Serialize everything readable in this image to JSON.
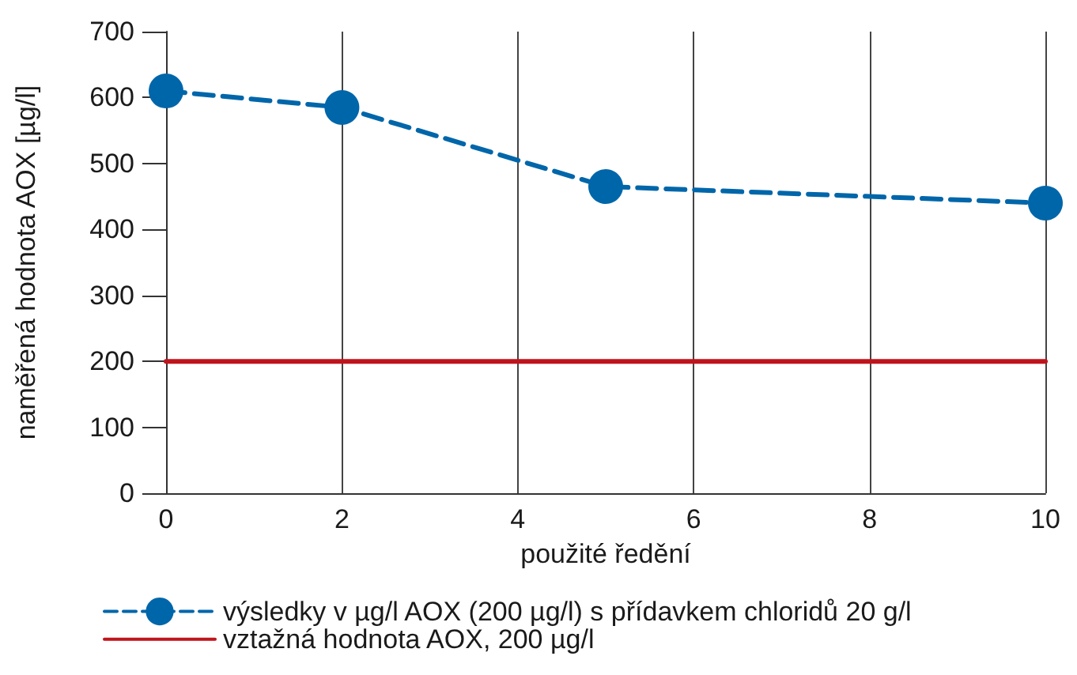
{
  "chart_data": {
    "type": "line",
    "xlabel": "použité ředění",
    "ylabel": "naměřená hodnota AOX [µg/l]",
    "x": [
      0,
      2,
      5,
      10
    ],
    "series": [
      {
        "name": "výsledky v µg/l AOX (200 µg/l) s přídavkem chloridů 20 g/l",
        "color": "#0066aa",
        "values": [
          610,
          585,
          465,
          440
        ],
        "marker": "circle",
        "line_style": "dashed"
      },
      {
        "name": "vztažná hodnota AOX, 200 µg/l",
        "color": "#c0141c",
        "x": [
          0,
          10
        ],
        "values": [
          200,
          200
        ],
        "marker": "none",
        "line_style": "solid"
      }
    ],
    "xlim": [
      0,
      10
    ],
    "xticks": [
      0,
      2,
      4,
      6,
      8,
      10
    ],
    "ylim": [
      0,
      700
    ],
    "yticks": [
      0,
      100,
      200,
      300,
      400,
      500,
      600,
      700
    ],
    "grid": "x",
    "legend": "bottom left"
  }
}
